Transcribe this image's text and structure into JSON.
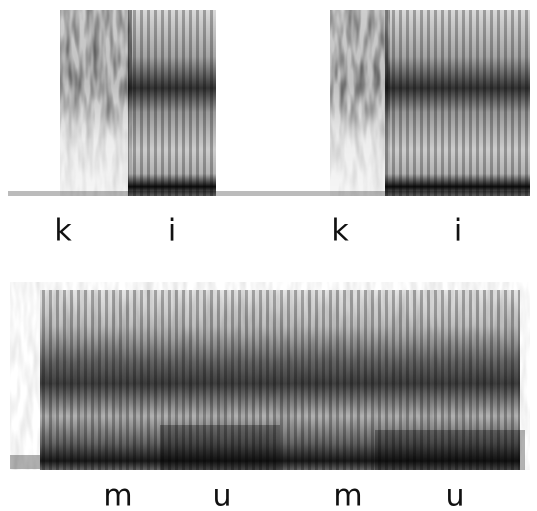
{
  "panels": [
    {
      "labels": [
        "k",
        "i",
        "k",
        "i"
      ]
    },
    {
      "labels": [
        "m",
        "u",
        "m",
        "u"
      ]
    }
  ]
}
